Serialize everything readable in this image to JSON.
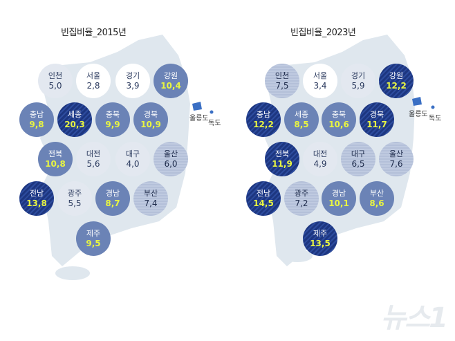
{
  "maps": [
    {
      "title": "빈집비율_2015년",
      "regions": [
        {
          "name": "인천",
          "value": "5,0",
          "level": 1
        },
        {
          "name": "서울",
          "value": "2,8",
          "level": 0
        },
        {
          "name": "경기",
          "value": "3,9",
          "level": 0
        },
        {
          "name": "강원",
          "value": "10,4",
          "level": 3
        },
        {
          "name": "충남",
          "value": "9,8",
          "level": 3
        },
        {
          "name": "세종",
          "value": "20,3",
          "level": 4
        },
        {
          "name": "충북",
          "value": "9,9",
          "level": 3
        },
        {
          "name": "경북",
          "value": "10,9",
          "level": 3
        },
        {
          "name": "전북",
          "value": "10,8",
          "level": 3
        },
        {
          "name": "대전",
          "value": "5,6",
          "level": 1
        },
        {
          "name": "대구",
          "value": "4,0",
          "level": 1
        },
        {
          "name": "울산",
          "value": "6,0",
          "level": 2
        },
        {
          "name": "전남",
          "value": "13,8",
          "level": 4
        },
        {
          "name": "광주",
          "value": "5,5",
          "level": 1
        },
        {
          "name": "경남",
          "value": "8,7",
          "level": 3
        },
        {
          "name": "부산",
          "value": "7,4",
          "level": 2
        },
        {
          "name": "제주",
          "value": "9,5",
          "level": 3
        }
      ]
    },
    {
      "title": "빈집비율_2023년",
      "regions": [
        {
          "name": "인천",
          "value": "7,5",
          "level": 2
        },
        {
          "name": "서울",
          "value": "3,4",
          "level": 0
        },
        {
          "name": "경기",
          "value": "5,9",
          "level": 1
        },
        {
          "name": "강원",
          "value": "12,2",
          "level": 4
        },
        {
          "name": "충남",
          "value": "12,2",
          "level": 4
        },
        {
          "name": "세종",
          "value": "8,5",
          "level": 3
        },
        {
          "name": "충북",
          "value": "10,6",
          "level": 3
        },
        {
          "name": "경북",
          "value": "11,7",
          "level": 4
        },
        {
          "name": "전북",
          "value": "11,9",
          "level": 4
        },
        {
          "name": "대전",
          "value": "4,9",
          "level": 1
        },
        {
          "name": "대구",
          "value": "6,5",
          "level": 2
        },
        {
          "name": "울산",
          "value": "7,6",
          "level": 2
        },
        {
          "name": "전남",
          "value": "14,5",
          "level": 4
        },
        {
          "name": "광주",
          "value": "7,2",
          "level": 2
        },
        {
          "name": "경남",
          "value": "10,1",
          "level": 3
        },
        {
          "name": "부산",
          "value": "8,6",
          "level": 3
        },
        {
          "name": "제주",
          "value": "13,5",
          "level": 4
        }
      ]
    }
  ],
  "islands": {
    "ulleungdo": "울릉도",
    "dokdo": "독도"
  },
  "watermark": "뉴스1"
}
